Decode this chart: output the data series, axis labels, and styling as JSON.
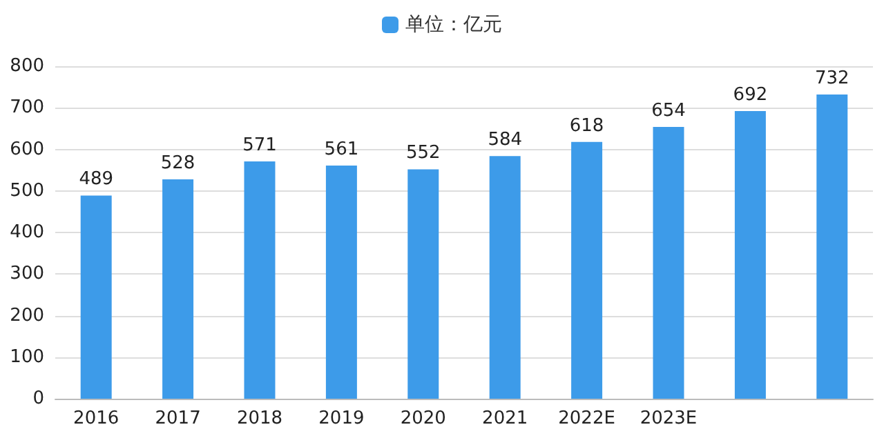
{
  "chart_data": {
    "type": "bar",
    "categories": [
      "2016",
      "2017",
      "2018",
      "2019",
      "2020",
      "2021",
      "2022E",
      "2023E",
      null,
      null
    ],
    "series": [
      {
        "name": "单位：亿元",
        "color": "#3d9be9",
        "values": [
          489,
          528,
          571,
          561,
          552,
          584,
          618,
          654,
          692,
          732
        ]
      }
    ],
    "ylim": [
      0,
      800
    ],
    "yticks": [
      0,
      100,
      200,
      300,
      400,
      500,
      600,
      700,
      800
    ],
    "grid": "y",
    "legend": "top",
    "data_labels": true
  }
}
